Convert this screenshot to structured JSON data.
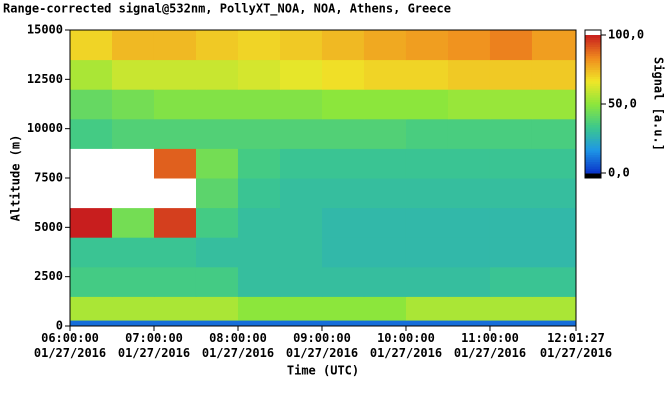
{
  "chart_data": {
    "type": "heatmap",
    "title": "Range-corrected signal@532nm, PollyXT_NOA, NOA, Athens, Greece",
    "x_label": "Time (UTC)",
    "y_label": "Altitude (m)",
    "colorbar_label": "Signal [a.u.]",
    "x": [
      6,
      6.5,
      7,
      7.5,
      8,
      8.5,
      9,
      9.5,
      10,
      10.5,
      11,
      11.5,
      12.0242
    ],
    "y": [
      0,
      300,
      1500,
      3000,
      4500,
      6000,
      7500,
      9000,
      10500,
      12000,
      13500,
      15000
    ],
    "z": [
      [
        10,
        10,
        10,
        10,
        10,
        10,
        10,
        10,
        10,
        10,
        10,
        10
      ],
      [
        55,
        55,
        55,
        55,
        50,
        50,
        50,
        50,
        55,
        55,
        55,
        55
      ],
      [
        35,
        35,
        35,
        35,
        30,
        30,
        30,
        30,
        30,
        30,
        32,
        32
      ],
      [
        32,
        32,
        32,
        30,
        30,
        30,
        28,
        28,
        28,
        28,
        28,
        28
      ],
      [
        100,
        45,
        95,
        35,
        30,
        30,
        28,
        28,
        28,
        28,
        28,
        28
      ],
      [
        120,
        110,
        110,
        40,
        32,
        30,
        30,
        30,
        30,
        30,
        30,
        30
      ],
      [
        110,
        105,
        90,
        45,
        35,
        32,
        32,
        32,
        32,
        32,
        32,
        32
      ],
      [
        35,
        38,
        38,
        38,
        38,
        38,
        38,
        38,
        36,
        36,
        36,
        36
      ],
      [
        42,
        45,
        48,
        48,
        48,
        48,
        50,
        50,
        50,
        52,
        52,
        52
      ],
      [
        55,
        60,
        60,
        60,
        62,
        65,
        68,
        70,
        70,
        72,
        72,
        72
      ],
      [
        70,
        75,
        75,
        72,
        70,
        72,
        75,
        78,
        80,
        82,
        85,
        80
      ]
    ],
    "xlim": [
      6,
      12.0242
    ],
    "xticks": [
      {
        "value": 6,
        "label": "06:00:00 01/27/2016"
      },
      {
        "value": 7,
        "label": "07:00:00 01/27/2016"
      },
      {
        "value": 8,
        "label": "08:00:00 01/27/2016"
      },
      {
        "value": 9,
        "label": "09:00:00 01/27/2016"
      },
      {
        "value": 10,
        "label": "10:00:00 01/27/2016"
      },
      {
        "value": 11,
        "label": "11:00:00 01/27/2016"
      },
      {
        "value": 12.0242,
        "label": "12:01:27 01/27/2016"
      }
    ],
    "ylim": [
      0,
      15000
    ],
    "yticks": [
      0,
      2500,
      5000,
      7500,
      10000,
      12500,
      15000
    ],
    "zlim": [
      0,
      100
    ],
    "zticks": [
      {
        "value": 0,
        "label": "0,0"
      },
      {
        "value": 50,
        "label": "50,0"
      },
      {
        "value": 100,
        "label": "100,0"
      }
    ],
    "colorscale": [
      "#0a32c8",
      "#1e96e6",
      "#3cc88c",
      "#8ce63c",
      "#f0e628",
      "#f08c1e",
      "#c81e1e"
    ],
    "over_color": "#ffffff"
  }
}
